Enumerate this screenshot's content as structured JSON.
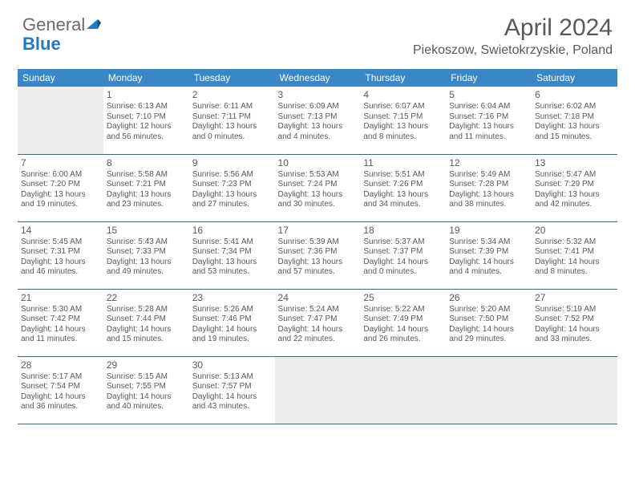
{
  "logo": {
    "text1": "General",
    "text2": "Blue"
  },
  "title": "April 2024",
  "location": "Piekoszow, Swietokrzyskie, Poland",
  "colors": {
    "header_bg": "#3a87c7",
    "header_text": "#ffffff",
    "cell_border": "#3a6a95",
    "empty_bg": "#ededed",
    "text": "#595959",
    "logo_gray": "#6b6b6b",
    "logo_blue": "#1f7bbf"
  },
  "dayHeaders": [
    "Sunday",
    "Monday",
    "Tuesday",
    "Wednesday",
    "Thursday",
    "Friday",
    "Saturday"
  ],
  "weeks": [
    [
      null,
      {
        "n": "1",
        "sr": "6:13 AM",
        "ss": "7:10 PM",
        "dl": "12 hours and 56 minutes."
      },
      {
        "n": "2",
        "sr": "6:11 AM",
        "ss": "7:11 PM",
        "dl": "13 hours and 0 minutes."
      },
      {
        "n": "3",
        "sr": "6:09 AM",
        "ss": "7:13 PM",
        "dl": "13 hours and 4 minutes."
      },
      {
        "n": "4",
        "sr": "6:07 AM",
        "ss": "7:15 PM",
        "dl": "13 hours and 8 minutes."
      },
      {
        "n": "5",
        "sr": "6:04 AM",
        "ss": "7:16 PM",
        "dl": "13 hours and 11 minutes."
      },
      {
        "n": "6",
        "sr": "6:02 AM",
        "ss": "7:18 PM",
        "dl": "13 hours and 15 minutes."
      }
    ],
    [
      {
        "n": "7",
        "sr": "6:00 AM",
        "ss": "7:20 PM",
        "dl": "13 hours and 19 minutes."
      },
      {
        "n": "8",
        "sr": "5:58 AM",
        "ss": "7:21 PM",
        "dl": "13 hours and 23 minutes."
      },
      {
        "n": "9",
        "sr": "5:56 AM",
        "ss": "7:23 PM",
        "dl": "13 hours and 27 minutes."
      },
      {
        "n": "10",
        "sr": "5:53 AM",
        "ss": "7:24 PM",
        "dl": "13 hours and 30 minutes."
      },
      {
        "n": "11",
        "sr": "5:51 AM",
        "ss": "7:26 PM",
        "dl": "13 hours and 34 minutes."
      },
      {
        "n": "12",
        "sr": "5:49 AM",
        "ss": "7:28 PM",
        "dl": "13 hours and 38 minutes."
      },
      {
        "n": "13",
        "sr": "5:47 AM",
        "ss": "7:29 PM",
        "dl": "13 hours and 42 minutes."
      }
    ],
    [
      {
        "n": "14",
        "sr": "5:45 AM",
        "ss": "7:31 PM",
        "dl": "13 hours and 46 minutes."
      },
      {
        "n": "15",
        "sr": "5:43 AM",
        "ss": "7:33 PM",
        "dl": "13 hours and 49 minutes."
      },
      {
        "n": "16",
        "sr": "5:41 AM",
        "ss": "7:34 PM",
        "dl": "13 hours and 53 minutes."
      },
      {
        "n": "17",
        "sr": "5:39 AM",
        "ss": "7:36 PM",
        "dl": "13 hours and 57 minutes."
      },
      {
        "n": "18",
        "sr": "5:37 AM",
        "ss": "7:37 PM",
        "dl": "14 hours and 0 minutes."
      },
      {
        "n": "19",
        "sr": "5:34 AM",
        "ss": "7:39 PM",
        "dl": "14 hours and 4 minutes."
      },
      {
        "n": "20",
        "sr": "5:32 AM",
        "ss": "7:41 PM",
        "dl": "14 hours and 8 minutes."
      }
    ],
    [
      {
        "n": "21",
        "sr": "5:30 AM",
        "ss": "7:42 PM",
        "dl": "14 hours and 11 minutes."
      },
      {
        "n": "22",
        "sr": "5:28 AM",
        "ss": "7:44 PM",
        "dl": "14 hours and 15 minutes."
      },
      {
        "n": "23",
        "sr": "5:26 AM",
        "ss": "7:46 PM",
        "dl": "14 hours and 19 minutes."
      },
      {
        "n": "24",
        "sr": "5:24 AM",
        "ss": "7:47 PM",
        "dl": "14 hours and 22 minutes."
      },
      {
        "n": "25",
        "sr": "5:22 AM",
        "ss": "7:49 PM",
        "dl": "14 hours and 26 minutes."
      },
      {
        "n": "26",
        "sr": "5:20 AM",
        "ss": "7:50 PM",
        "dl": "14 hours and 29 minutes."
      },
      {
        "n": "27",
        "sr": "5:19 AM",
        "ss": "7:52 PM",
        "dl": "14 hours and 33 minutes."
      }
    ],
    [
      {
        "n": "28",
        "sr": "5:17 AM",
        "ss": "7:54 PM",
        "dl": "14 hours and 36 minutes."
      },
      {
        "n": "29",
        "sr": "5:15 AM",
        "ss": "7:55 PM",
        "dl": "14 hours and 40 minutes."
      },
      {
        "n": "30",
        "sr": "5:13 AM",
        "ss": "7:57 PM",
        "dl": "14 hours and 43 minutes."
      },
      null,
      null,
      null,
      null
    ]
  ],
  "labels": {
    "sunrise": "Sunrise:",
    "sunset": "Sunset:",
    "daylight": "Daylight:"
  }
}
